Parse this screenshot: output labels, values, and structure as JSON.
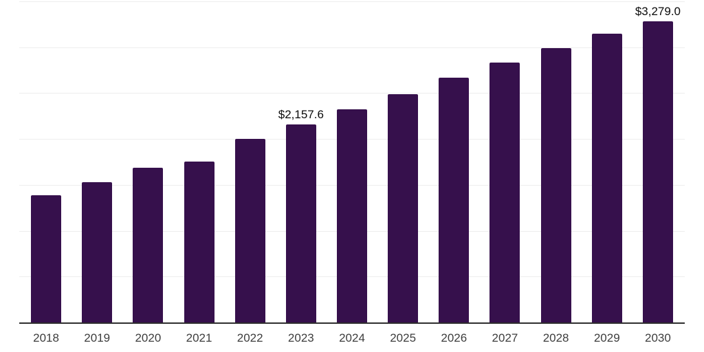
{
  "chart_data": {
    "type": "bar",
    "title": "",
    "xlabel": "",
    "ylabel": "",
    "categories": [
      "2018",
      "2019",
      "2020",
      "2021",
      "2022",
      "2023",
      "2024",
      "2025",
      "2026",
      "2027",
      "2028",
      "2029",
      "2030"
    ],
    "values": [
      1385,
      1530,
      1690,
      1755,
      2000,
      2157.6,
      2325,
      2490,
      2665,
      2835,
      2990,
      3150,
      3279.0
    ],
    "annotations": [
      {
        "category": "2023",
        "text": "$2,157.6"
      },
      {
        "category": "2030",
        "text": "$3,279.0"
      }
    ],
    "ylim": [
      0,
      3500
    ],
    "gridline_step": 500,
    "grid": "horizontal",
    "y_tick_labels_shown": false,
    "legend_position": "none",
    "bar_color": "#36104c"
  },
  "style": {
    "background": "#ffffff",
    "grid_color": "#ededed",
    "axis_color": "#2e2e2e",
    "tick_label_color": "#3d3d3d",
    "value_label_color": "#0a0a0a"
  }
}
